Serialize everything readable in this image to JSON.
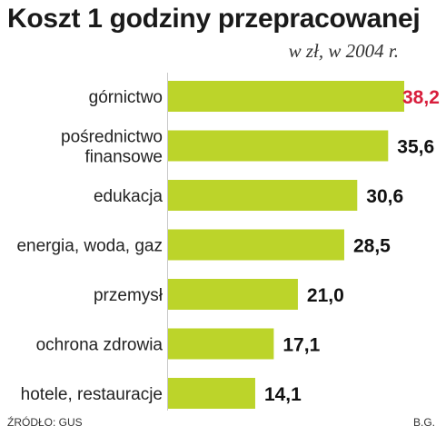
{
  "colors": {
    "bar": "#bcd42a",
    "highlight_value": "#d81e3c",
    "value_text": "#111111",
    "category_text": "#222222"
  },
  "footer": {
    "source": "ŹRÓDŁO: GUS",
    "author": "B.G."
  },
  "chart_data": {
    "type": "bar",
    "orientation": "horizontal",
    "title": "Koszt 1 godziny przepracowanej",
    "subtitle": "w zł, w 2004 r.",
    "categories": [
      [
        "górnictwo"
      ],
      [
        "pośrednictwo",
        "finansowe"
      ],
      [
        "edukacja"
      ],
      [
        "energia, woda, gaz"
      ],
      [
        "przemysł"
      ],
      [
        "ochrona zdrowia"
      ],
      [
        "hotele, restauracje"
      ]
    ],
    "values": [
      38.2,
      35.6,
      30.6,
      28.5,
      21.0,
      17.1,
      14.1
    ],
    "value_labels": [
      "38,2",
      "35,6",
      "30,6",
      "28,5",
      "21,0",
      "17,1",
      "14,1"
    ],
    "highlight_index": 0,
    "xlim": [
      0,
      38.2
    ],
    "grid": false,
    "legend": "none"
  }
}
